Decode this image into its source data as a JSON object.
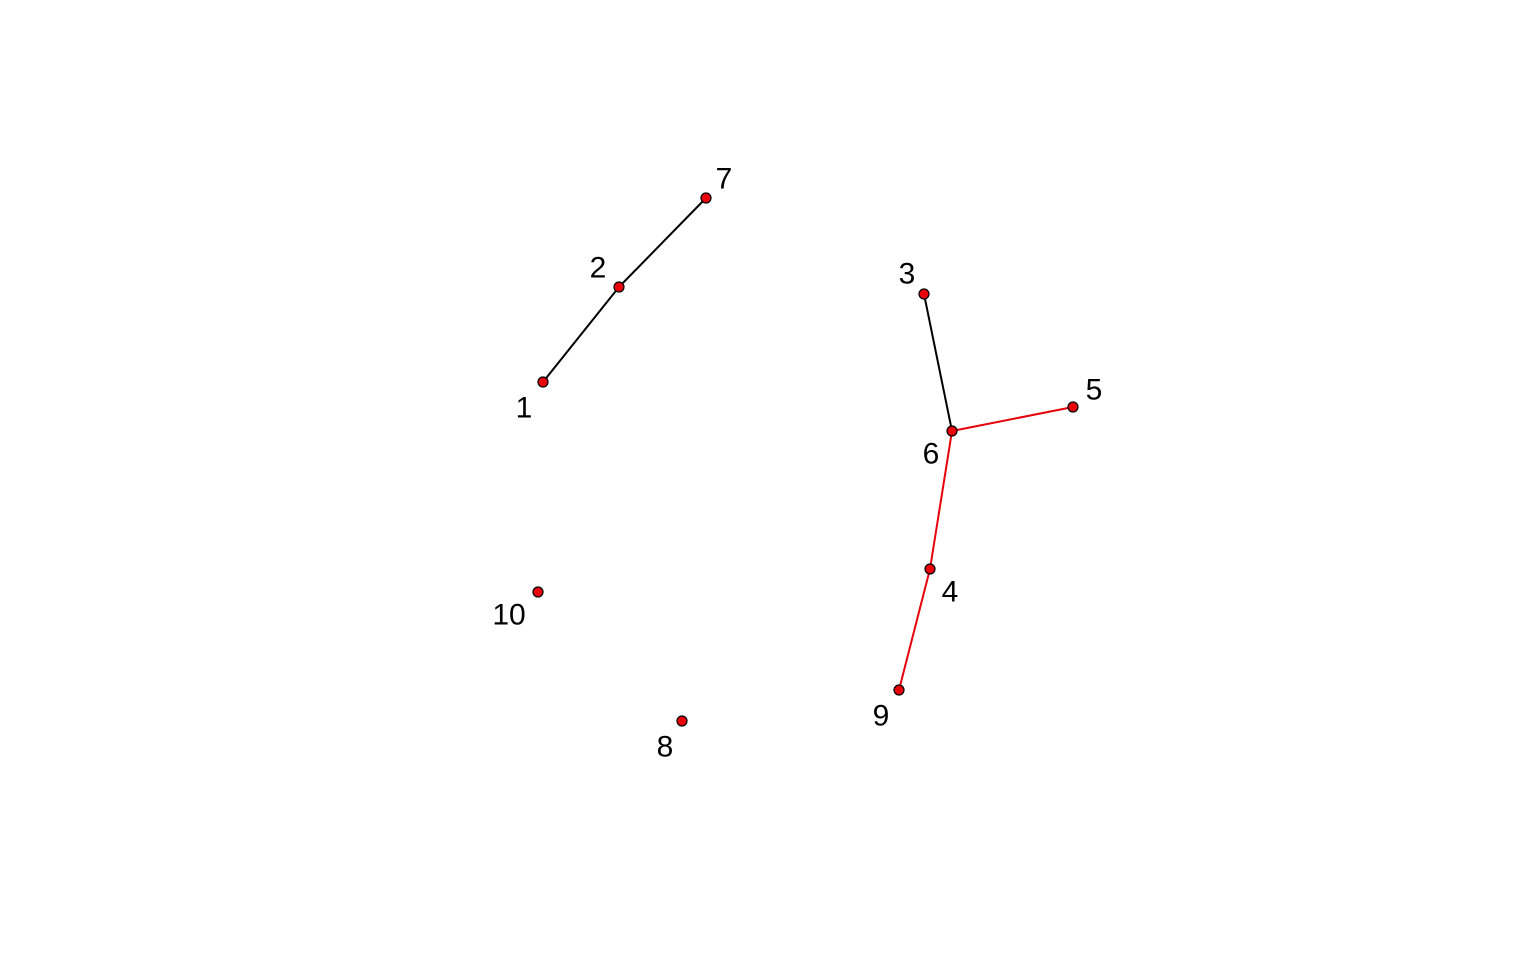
{
  "graph": {
    "colors": {
      "node_fill": "#e8000b",
      "node_border": "#000000",
      "label": "#000000"
    },
    "nodes": [
      {
        "id": "1",
        "label": "1"
      },
      {
        "id": "2",
        "label": "2"
      },
      {
        "id": "3",
        "label": "3"
      },
      {
        "id": "4",
        "label": "4"
      },
      {
        "id": "5",
        "label": "5"
      },
      {
        "id": "6",
        "label": "6"
      },
      {
        "id": "7",
        "label": "7"
      },
      {
        "id": "8",
        "label": "8"
      },
      {
        "id": "9",
        "label": "9"
      },
      {
        "id": "10",
        "label": "10"
      }
    ],
    "edges": [
      {
        "source": "1",
        "target": "2",
        "color": "#000000"
      },
      {
        "source": "2",
        "target": "7",
        "color": "#000000"
      },
      {
        "source": "3",
        "target": "6",
        "color": "#000000"
      },
      {
        "source": "6",
        "target": "5",
        "color": "#e8000b"
      },
      {
        "source": "6",
        "target": "4",
        "color": "#e8000b"
      },
      {
        "source": "4",
        "target": "9",
        "color": "#e8000b"
      }
    ]
  }
}
